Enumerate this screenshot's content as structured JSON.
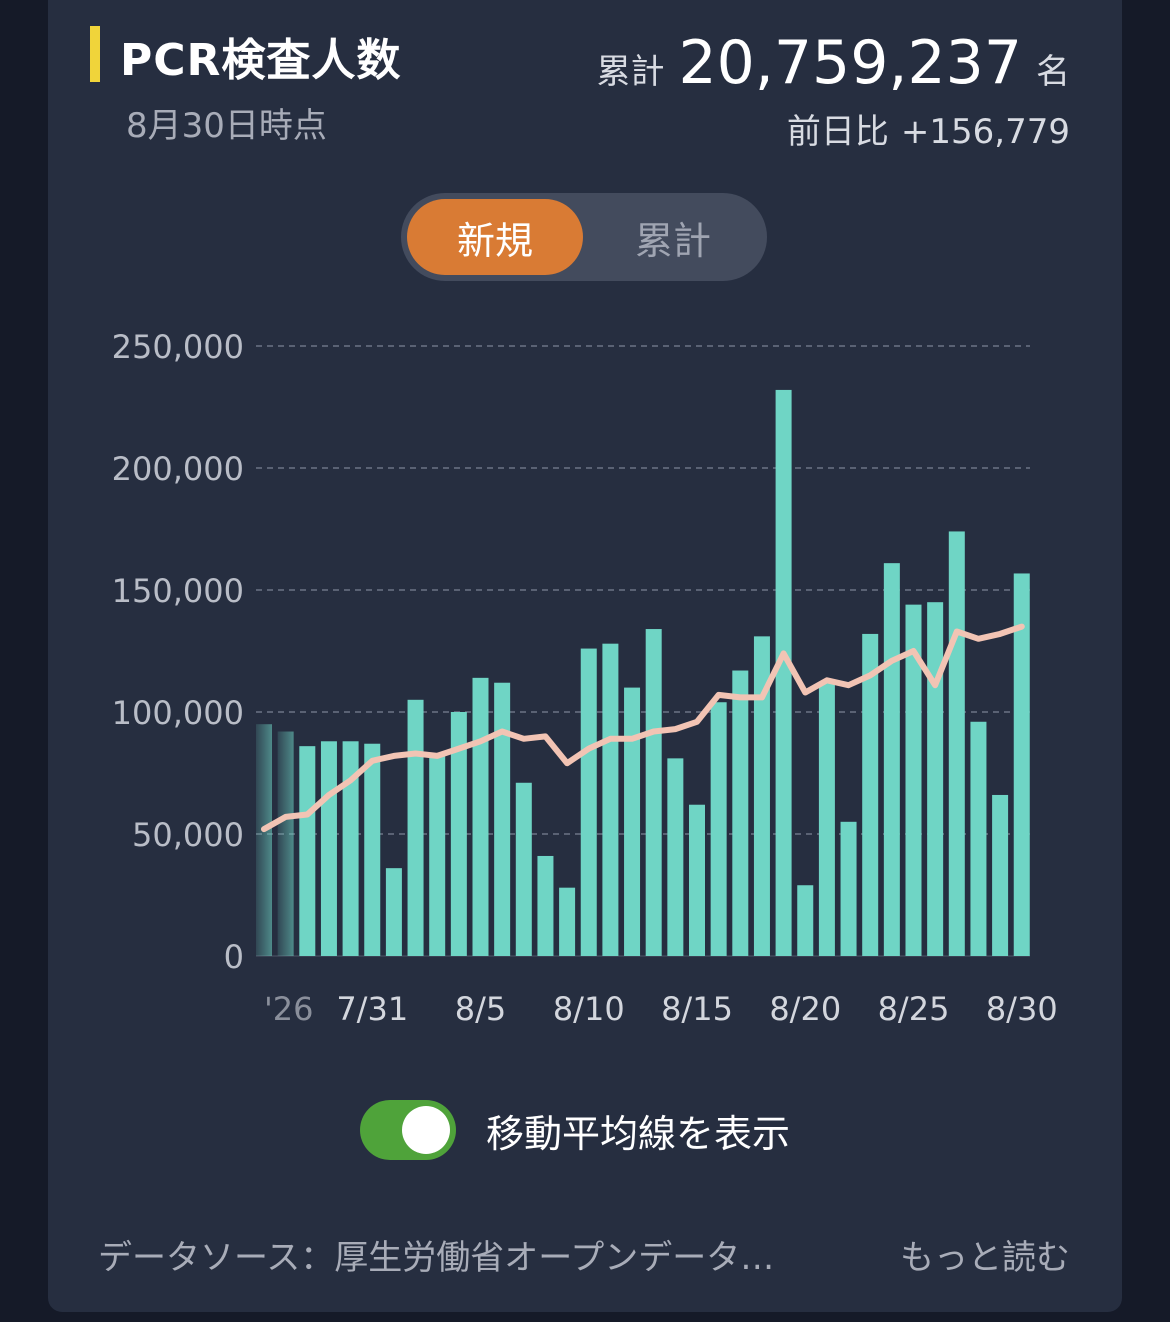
{
  "header": {
    "title": "PCR検査人数",
    "as_of": "8月30日時点",
    "total_label": "累計",
    "total_value": "20,759,237",
    "total_unit": "名",
    "diff_label": "前日比",
    "diff_value": "+156,779"
  },
  "toggle": {
    "new_label": "新規",
    "cumulative_label": "累計",
    "selected": "新規"
  },
  "moving_average_switch": {
    "label": "移動平均線を表示",
    "on": true
  },
  "footer": {
    "source": "データソース：厚生労働省オープンデータ…",
    "more": "もっと読む"
  },
  "colors": {
    "bar": "#6fd5c5",
    "line": "#f2c4b4",
    "accent": "#d97b34",
    "title_marker": "#f0d43a"
  },
  "chart_data": {
    "type": "bar",
    "x_first_tick_label": "'26",
    "categories": [
      "7/26",
      "7/27",
      "7/28",
      "7/29",
      "7/30",
      "7/31",
      "8/1",
      "8/2",
      "8/3",
      "8/4",
      "8/5",
      "8/6",
      "8/7",
      "8/8",
      "8/9",
      "8/10",
      "8/11",
      "8/12",
      "8/13",
      "8/14",
      "8/15",
      "8/16",
      "8/17",
      "8/18",
      "8/19",
      "8/20",
      "8/21",
      "8/22",
      "8/23",
      "8/24",
      "8/25",
      "8/26",
      "8/27",
      "8/28",
      "8/29",
      "8/30"
    ],
    "series": [
      {
        "type": "bar",
        "values": [
          95000,
          92000,
          86000,
          88000,
          88000,
          87000,
          36000,
          105000,
          83000,
          100000,
          114000,
          112000,
          71000,
          41000,
          28000,
          126000,
          128000,
          110000,
          134000,
          81000,
          62000,
          104000,
          117000,
          131000,
          232000,
          29000,
          112000,
          55000,
          132000,
          161000,
          144000,
          145000,
          174000,
          96000,
          66000,
          156779
        ]
      },
      {
        "type": "line",
        "values": [
          52000,
          57000,
          58000,
          66000,
          72000,
          80000,
          82000,
          83000,
          82000,
          85000,
          88000,
          92000,
          89000,
          90000,
          79000,
          85000,
          89000,
          89000,
          92000,
          93000,
          96000,
          107000,
          106000,
          106000,
          124000,
          108000,
          113000,
          111000,
          115000,
          121000,
          125000,
          111000,
          133000,
          130000,
          132000,
          135000
        ]
      }
    ],
    "x_tick_labels": [
      "'26",
      "7/31",
      "8/5",
      "8/10",
      "8/15",
      "8/20",
      "8/25",
      "8/30"
    ],
    "y_ticks": [
      0,
      50000,
      100000,
      150000,
      200000,
      250000
    ],
    "y_tick_labels": [
      "0",
      "50,000",
      "100,000",
      "150,000",
      "200,000",
      "250,000"
    ],
    "ylim": [
      0,
      250000
    ],
    "grid": true,
    "faded_leading_bars": 2
  }
}
